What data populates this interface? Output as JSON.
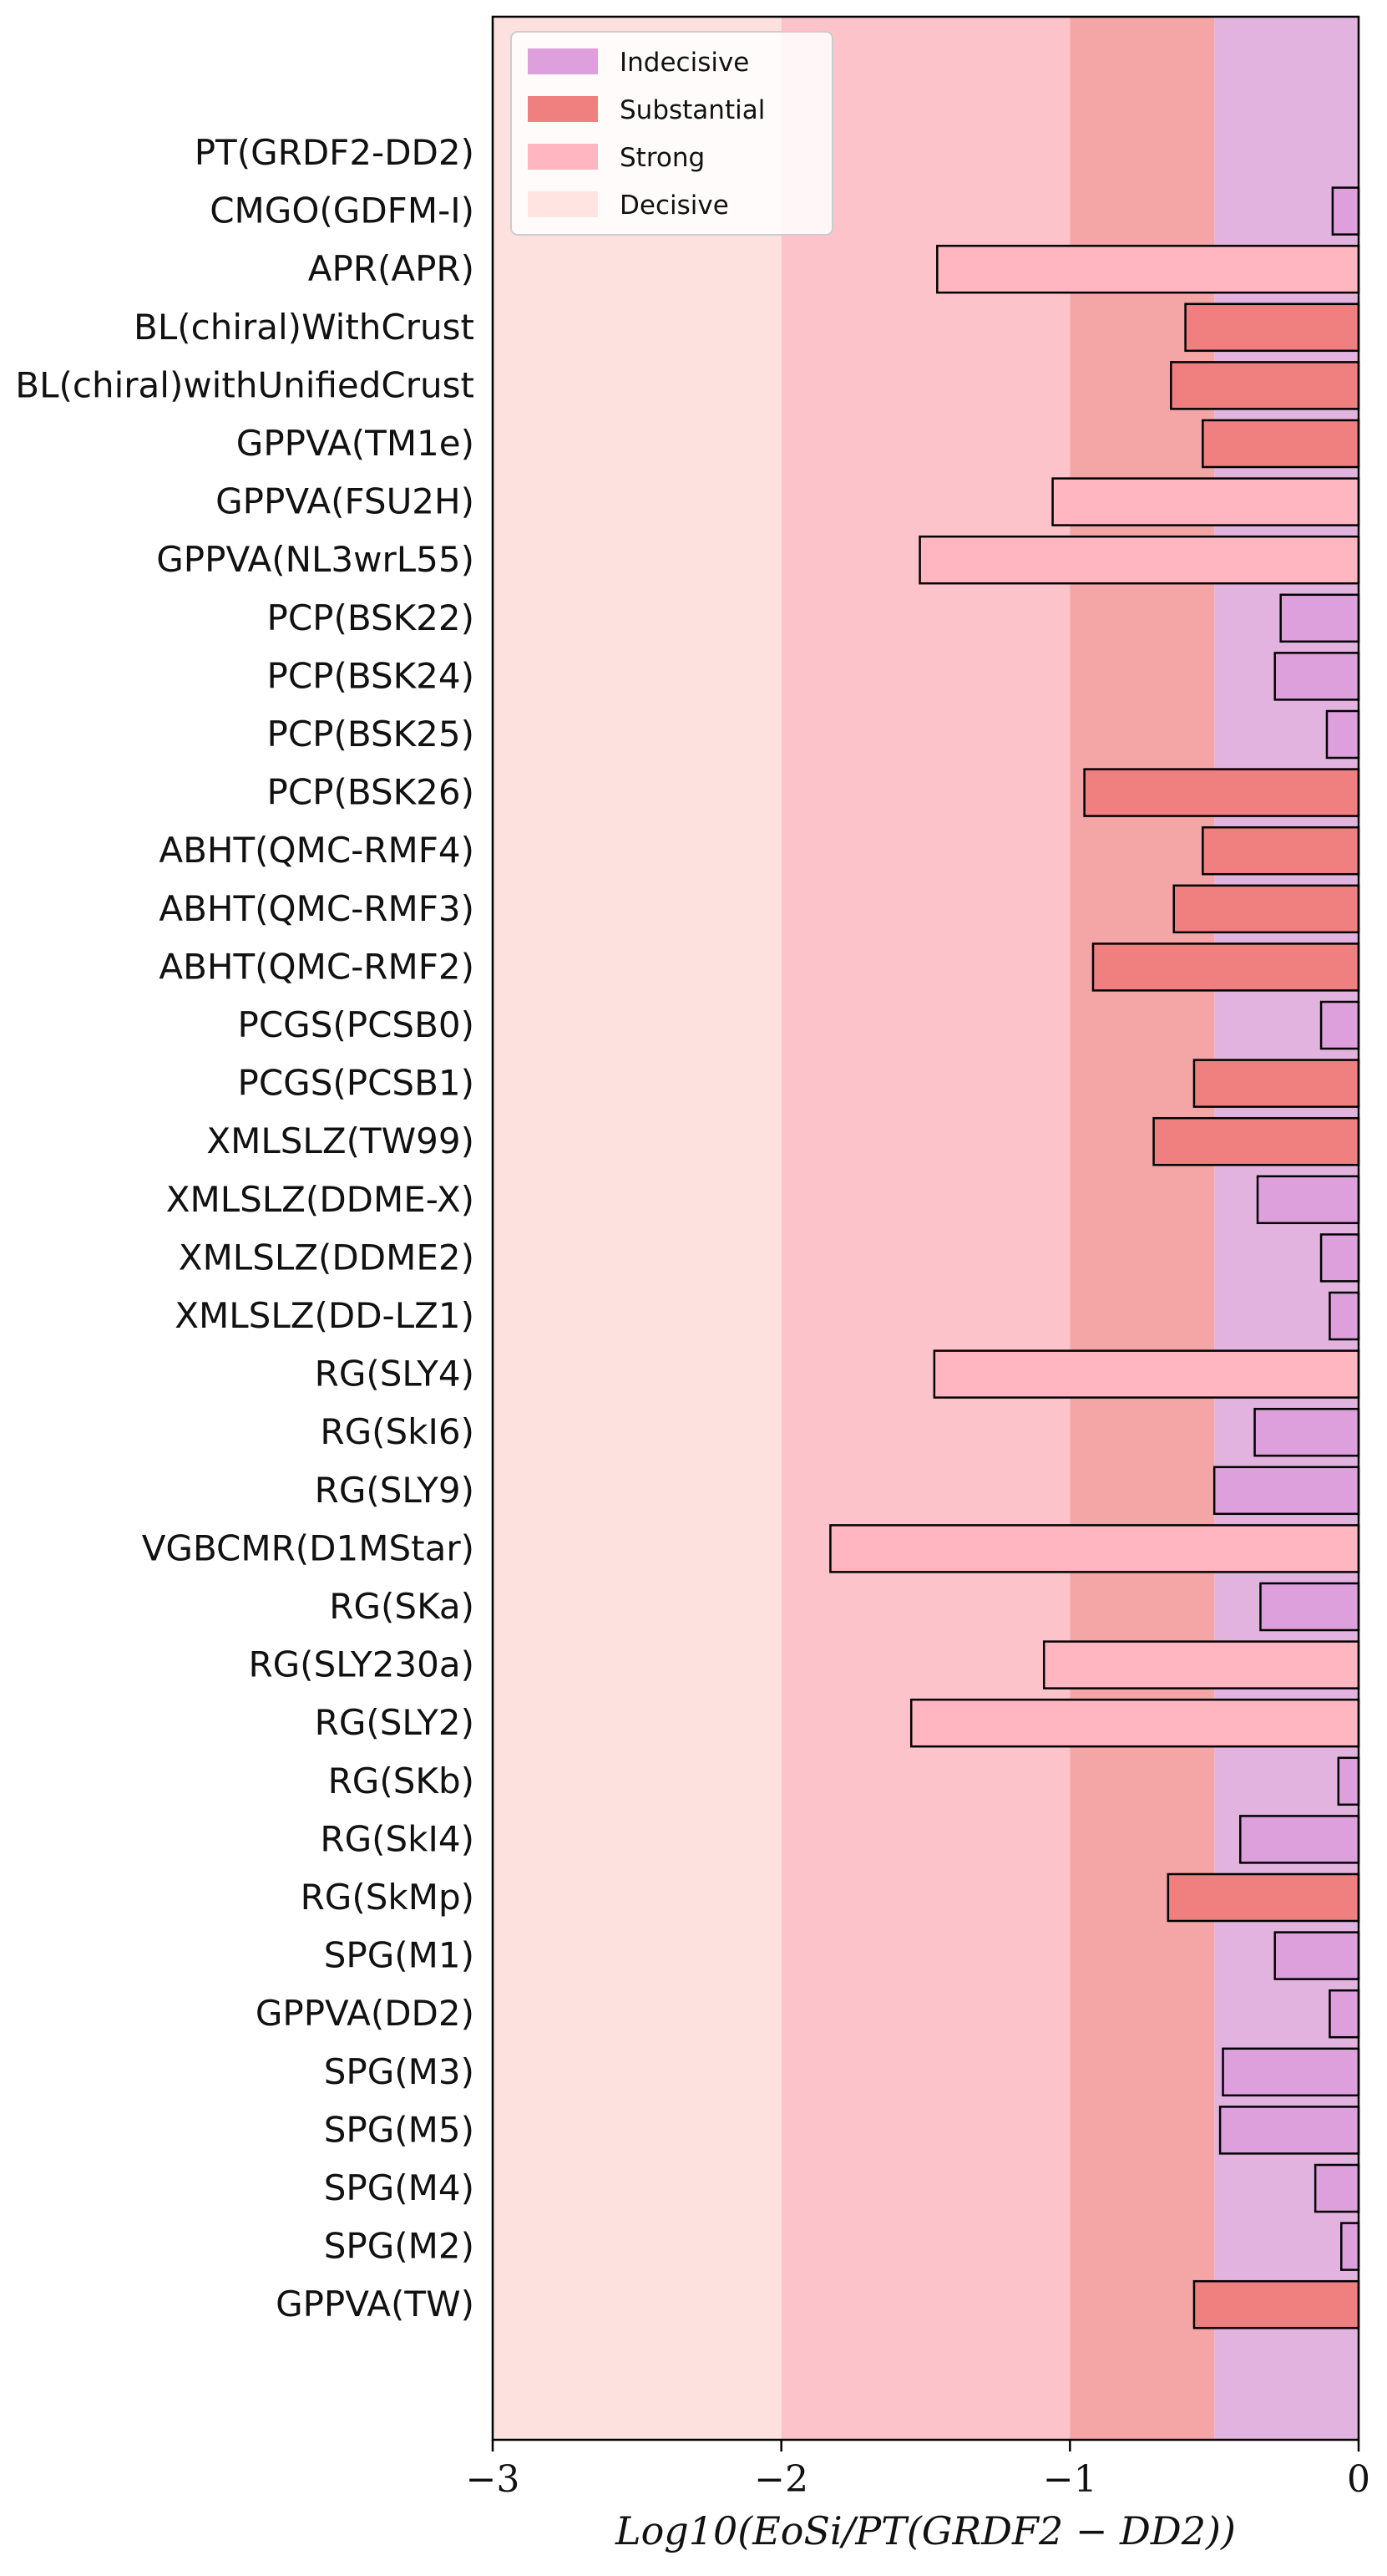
{
  "chart_data": {
    "type": "bar",
    "orientation": "horizontal",
    "xlabel": "Log10(EoSi/PT(GRDF2 − DD2))",
    "xlim": [
      -3,
      0
    ],
    "xticks": [
      -3,
      -2,
      -1,
      0
    ],
    "xtick_labels": [
      "−3",
      "−2",
      "−1",
      "0"
    ],
    "legend": {
      "placement": "top-left",
      "entries": [
        {
          "key": "indecisive",
          "label": "Indecisive",
          "color": "#dda0dd"
        },
        {
          "key": "substantial",
          "label": "Substantial",
          "color": "#f08080"
        },
        {
          "key": "strong",
          "label": "Strong",
          "color": "#ffb6c1"
        },
        {
          "key": "decisive",
          "label": "Decisive",
          "color": "#ffe4e1"
        }
      ]
    },
    "regions": [
      {
        "category": "decisive",
        "from": -3,
        "to": -2,
        "color": "#fde1df"
      },
      {
        "category": "strong",
        "from": -2,
        "to": -1,
        "color": "#fcc3ca"
      },
      {
        "category": "substantial",
        "from": -1,
        "to": -0.5,
        "color": "#f4a6a6"
      },
      {
        "category": "indecisive",
        "from": -0.5,
        "to": 0,
        "color": "#e3b3df"
      }
    ],
    "thresholds": {
      "indecisive": -0.5,
      "substantial": -1,
      "strong": -2
    },
    "colors": {
      "indecisive": "#dda0dd",
      "substantial": "#f08080",
      "strong": "#ffb6c1",
      "decisive": "#ffe4e1",
      "edge": "#000000"
    },
    "categories": [
      "PT(GRDF2-DD2)",
      "CMGO(GDFM-I)",
      "APR(APR)",
      "BL(chiral)WithCrust",
      "BL(chiral)withUnifiedCrust",
      "GPPVA(TM1e)",
      "GPPVA(FSU2H)",
      "GPPVA(NL3wrL55)",
      "PCP(BSK22)",
      "PCP(BSK24)",
      "PCP(BSK25)",
      "PCP(BSK26)",
      "ABHT(QMC-RMF4)",
      "ABHT(QMC-RMF3)",
      "ABHT(QMC-RMF2)",
      "PCGS(PCSB0)",
      "PCGS(PCSB1)",
      "XMLSLZ(TW99)",
      "XMLSLZ(DDME-X)",
      "XMLSLZ(DDME2)",
      "XMLSLZ(DD-LZ1)",
      "RG(SLY4)",
      "RG(SkI6)",
      "RG(SLY9)",
      "VGBCMR(D1MStar)",
      "RG(SKa)",
      "RG(SLY230a)",
      "RG(SLY2)",
      "RG(SKb)",
      "RG(SkI4)",
      "RG(SkMp)",
      "SPG(M1)",
      "GPPVA(DD2)",
      "SPG(M3)",
      "SPG(M5)",
      "SPG(M4)",
      "SPG(M2)",
      "GPPVA(TW)"
    ],
    "values": [
      0.0,
      -0.09,
      -1.46,
      -0.6,
      -0.65,
      -0.54,
      -1.06,
      -1.52,
      -0.27,
      -0.29,
      -0.11,
      -0.95,
      -0.54,
      -0.64,
      -0.92,
      -0.13,
      -0.57,
      -0.71,
      -0.35,
      -0.13,
      -0.1,
      -1.47,
      -0.36,
      -0.5,
      -1.83,
      -0.34,
      -1.09,
      -1.55,
      -0.07,
      -0.41,
      -0.66,
      -0.29,
      -0.1,
      -0.47,
      -0.48,
      -0.15,
      -0.06,
      -0.57
    ]
  }
}
